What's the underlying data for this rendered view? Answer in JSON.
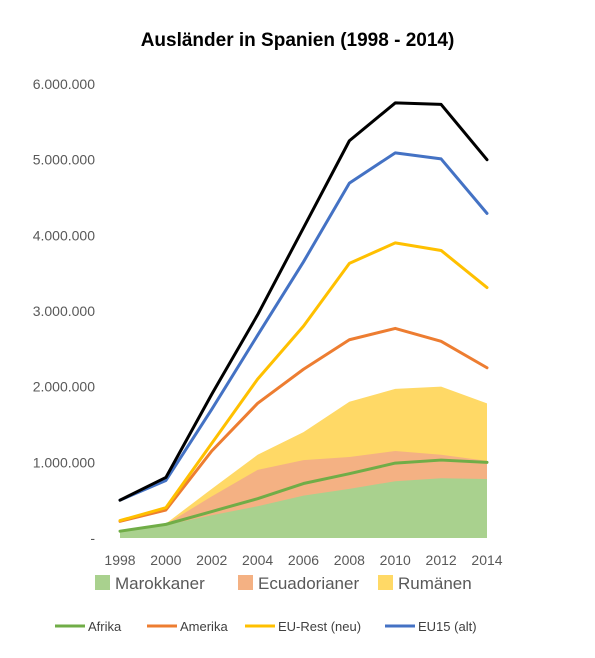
{
  "chart_data": {
    "type": "area",
    "title": "Ausländer in Spanien (1998 - 2014)",
    "x": [
      1998,
      2000,
      2002,
      2004,
      2006,
      2008,
      2010,
      2012,
      2014
    ],
    "x_ticks": [
      "1998",
      "2000",
      "2002",
      "2004",
      "2006",
      "2008",
      "2010",
      "2012",
      "2014"
    ],
    "y_ticks": [
      "-",
      "1.000.000",
      "2.000.000",
      "3.000.000",
      "4.000.000",
      "5.000.000",
      "6.000.000"
    ],
    "ylim": [
      0,
      6000000
    ],
    "grid": false,
    "area_series": [
      {
        "name": "Marokkaner",
        "color": "#a9d18e",
        "values": [
          90000,
          170000,
          300000,
          420000,
          560000,
          650000,
          750000,
          790000,
          780000
        ]
      },
      {
        "name": "Ecuadorianer",
        "color": "#f4b183",
        "values": [
          95000,
          180000,
          550000,
          900000,
          1030000,
          1070000,
          1150000,
          1100000,
          1020000
        ]
      },
      {
        "name": "Rumänen",
        "color": "#ffd966",
        "values": [
          100000,
          190000,
          650000,
          1100000,
          1400000,
          1800000,
          1970000,
          2000000,
          1780000
        ]
      }
    ],
    "line_series": [
      {
        "name": "Afrika",
        "color": "#70ad47",
        "values": [
          90000,
          180000,
          350000,
          520000,
          720000,
          850000,
          990000,
          1030000,
          1000000
        ]
      },
      {
        "name": "Amerika",
        "color": "#ed7d31",
        "values": [
          220000,
          370000,
          1150000,
          1780000,
          2230000,
          2620000,
          2770000,
          2600000,
          2250000
        ]
      },
      {
        "name": "EU-Rest (neu)",
        "color": "#ffc000",
        "values": [
          230000,
          400000,
          1250000,
          2100000,
          2800000,
          3630000,
          3900000,
          3800000,
          3310000
        ]
      },
      {
        "name": "EU15 (alt)",
        "color": "#4472c4",
        "values": [
          500000,
          760000,
          1700000,
          2680000,
          3650000,
          4690000,
          5090000,
          5010000,
          4290000
        ]
      },
      {
        "name": "",
        "color": "#000000",
        "values": [
          500000,
          800000,
          1900000,
          2950000,
          4100000,
          5250000,
          5750000,
          5730000,
          5000000
        ]
      }
    ]
  }
}
